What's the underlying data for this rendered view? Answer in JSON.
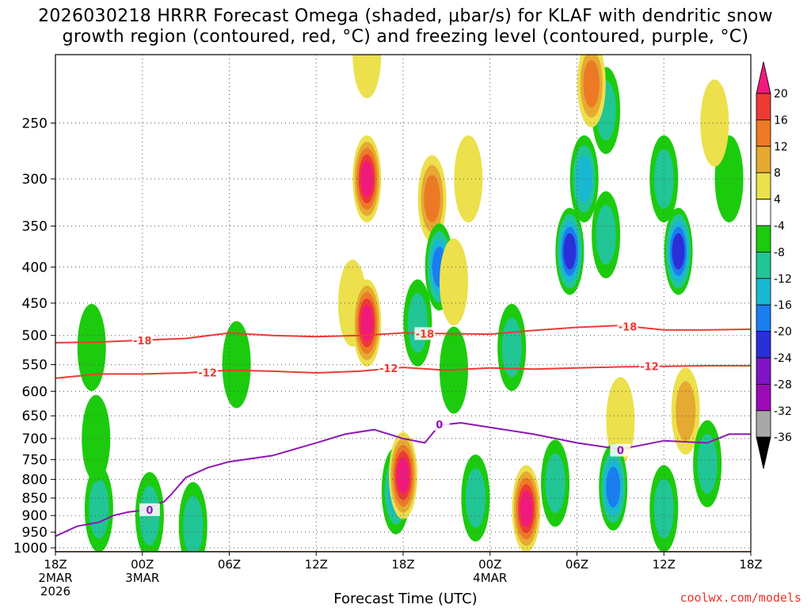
{
  "title_line1": "2026030218 HRRR Forecast Omega (shaded, μbar/s) for KLAF with dendritic snow",
  "title_line2": "growth region (contoured, red, °C) and freezing level (contoured, purple, °C)",
  "credit": "coolwx.com/models",
  "chart_data": {
    "type": "heatmap",
    "title": "2026030218 HRRR Forecast Omega (shaded, μbar/s) for KLAF with dendritic snow growth region (contoured, red, °C) and freezing level (contoured, purple, °C)",
    "xlabel": "Forecast Time (UTC)",
    "ylabel": "",
    "x_range_hours": [
      0,
      48
    ],
    "y_range_hpa": [
      1013,
      200
    ],
    "y_ticks": [
      250,
      300,
      350,
      400,
      450,
      500,
      550,
      600,
      650,
      700,
      750,
      800,
      850,
      900,
      950,
      1000
    ],
    "x_ticks": [
      {
        "hour": 0,
        "label": "18Z",
        "sub1": "2MAR",
        "sub2": "2026"
      },
      {
        "hour": 6,
        "label": "00Z",
        "sub1": "3MAR",
        "sub2": ""
      },
      {
        "hour": 12,
        "label": "06Z",
        "sub1": "",
        "sub2": ""
      },
      {
        "hour": 18,
        "label": "12Z",
        "sub1": "",
        "sub2": ""
      },
      {
        "hour": 24,
        "label": "18Z",
        "sub1": "",
        "sub2": ""
      },
      {
        "hour": 30,
        "label": "00Z",
        "sub1": "4MAR",
        "sub2": ""
      },
      {
        "hour": 36,
        "label": "06Z",
        "sub1": "",
        "sub2": ""
      },
      {
        "hour": 42,
        "label": "12Z",
        "sub1": "",
        "sub2": ""
      },
      {
        "hour": 48,
        "label": "18Z",
        "sub1": "",
        "sub2": ""
      }
    ],
    "colorbar": {
      "labels": [
        "20",
        "16",
        "12",
        "8",
        "4",
        "-4",
        "-8",
        "-12",
        "-16",
        "-20",
        "-24",
        "-28",
        "-32",
        "-36"
      ],
      "colors": [
        "#f01a7c",
        "#ee3a34",
        "#ec7a25",
        "#e6a932",
        "#ece04c",
        "#ffffff",
        "#1ccb0e",
        "#22c596",
        "#19b8d2",
        "#1a7df0",
        "#2a2fd8",
        "#7e14c6",
        "#9c0ab6",
        "#a8a8a8",
        "#000000"
      ]
    },
    "omega_cells": [
      {
        "t": 3.0,
        "p": 880,
        "v": -8
      },
      {
        "t": 2.8,
        "p": 700,
        "v": -6
      },
      {
        "t": 2.5,
        "p": 520,
        "v": -6
      },
      {
        "t": 6.5,
        "p": 900,
        "v": -8
      },
      {
        "t": 9.5,
        "p": 930,
        "v": -10
      },
      {
        "t": 12.5,
        "p": 550,
        "v": -6
      },
      {
        "t": 20.5,
        "p": 450,
        "v": 6
      },
      {
        "t": 21.5,
        "p": 300,
        "v": 24
      },
      {
        "t": 21.5,
        "p": 480,
        "v": 24
      },
      {
        "t": 21.5,
        "p": 200,
        "v": 6
      },
      {
        "t": 23.5,
        "p": 830,
        "v": -14
      },
      {
        "t": 24.0,
        "p": 790,
        "v": 22
      },
      {
        "t": 25.0,
        "p": 480,
        "v": -8
      },
      {
        "t": 26.0,
        "p": 320,
        "v": 12
      },
      {
        "t": 26.5,
        "p": 400,
        "v": -16
      },
      {
        "t": 27.5,
        "p": 560,
        "v": -6
      },
      {
        "t": 28.5,
        "p": 300,
        "v": 5
      },
      {
        "t": 27.5,
        "p": 420,
        "v": 6
      },
      {
        "t": 29.0,
        "p": 850,
        "v": -10
      },
      {
        "t": 31.5,
        "p": 520,
        "v": -8
      },
      {
        "t": 32.5,
        "p": 880,
        "v": 22
      },
      {
        "t": 35.5,
        "p": 380,
        "v": -20
      },
      {
        "t": 36.5,
        "p": 300,
        "v": -14
      },
      {
        "t": 38.0,
        "p": 360,
        "v": -8
      },
      {
        "t": 38.0,
        "p": 240,
        "v": -10
      },
      {
        "t": 37.0,
        "p": 220,
        "v": 12
      },
      {
        "t": 39.0,
        "p": 660,
        "v": 6
      },
      {
        "t": 38.5,
        "p": 820,
        "v": -16
      },
      {
        "t": 43.0,
        "p": 380,
        "v": -22
      },
      {
        "t": 42.0,
        "p": 300,
        "v": -10
      },
      {
        "t": 43.5,
        "p": 640,
        "v": 10
      },
      {
        "t": 42.0,
        "p": 880,
        "v": -10
      },
      {
        "t": 45.0,
        "p": 760,
        "v": -8
      },
      {
        "t": 46.5,
        "p": 300,
        "v": -6
      },
      {
        "t": 45.5,
        "p": 250,
        "v": 5
      },
      {
        "t": 34.5,
        "p": 810,
        "v": -10
      }
    ],
    "contours": [
      {
        "name": "dgz -18",
        "color": "#ee3a34",
        "label": "-18",
        "points": [
          [
            0,
            512
          ],
          [
            3,
            511
          ],
          [
            6,
            508
          ],
          [
            9,
            505
          ],
          [
            12,
            496
          ],
          [
            15,
            500
          ],
          [
            18,
            502
          ],
          [
            21,
            500
          ],
          [
            24,
            496
          ],
          [
            27,
            497
          ],
          [
            30,
            498
          ],
          [
            33,
            492
          ],
          [
            36,
            487
          ],
          [
            39,
            484
          ],
          [
            42,
            491
          ],
          [
            45,
            491
          ],
          [
            48,
            490
          ]
        ],
        "label_at": [
          [
            6,
            508
          ],
          [
            25.5,
            497
          ],
          [
            39.5,
            486
          ]
        ]
      },
      {
        "name": "dgz -12",
        "color": "#ee3a34",
        "label": "-12",
        "points": [
          [
            0,
            575
          ],
          [
            3,
            567
          ],
          [
            6,
            567
          ],
          [
            9,
            565
          ],
          [
            12,
            560
          ],
          [
            15,
            562
          ],
          [
            18,
            565
          ],
          [
            21,
            562
          ],
          [
            24,
            555
          ],
          [
            27,
            560
          ],
          [
            30,
            556
          ],
          [
            33,
            558
          ],
          [
            36,
            556
          ],
          [
            39,
            554
          ],
          [
            42,
            553
          ],
          [
            45,
            552
          ],
          [
            48,
            552
          ]
        ],
        "label_at": [
          [
            10.5,
            564
          ],
          [
            23,
            556
          ],
          [
            41,
            553
          ]
        ]
      },
      {
        "name": "freezing 0",
        "color": "#8e16b6",
        "label": "0",
        "points": [
          [
            0,
            963
          ],
          [
            1.5,
            932
          ],
          [
            3,
            920
          ],
          [
            4,
            900
          ],
          [
            5,
            890
          ],
          [
            6,
            885
          ],
          [
            7.5,
            860
          ],
          [
            8,
            840
          ],
          [
            9,
            795
          ],
          [
            10.5,
            770
          ],
          [
            12,
            755
          ],
          [
            15,
            740
          ],
          [
            18,
            710
          ],
          [
            20,
            690
          ],
          [
            22,
            680
          ],
          [
            24,
            700
          ],
          [
            25.5,
            710
          ],
          [
            26.5,
            670
          ],
          [
            28,
            665
          ],
          [
            30,
            675
          ],
          [
            33,
            690
          ],
          [
            36,
            710
          ],
          [
            39,
            725
          ],
          [
            42,
            705
          ],
          [
            45,
            710
          ],
          [
            46.5,
            690
          ],
          [
            48,
            690
          ]
        ],
        "label_at": [
          [
            6.5,
            883
          ],
          [
            26.5,
            668
          ],
          [
            39,
            727
          ]
        ]
      }
    ]
  }
}
